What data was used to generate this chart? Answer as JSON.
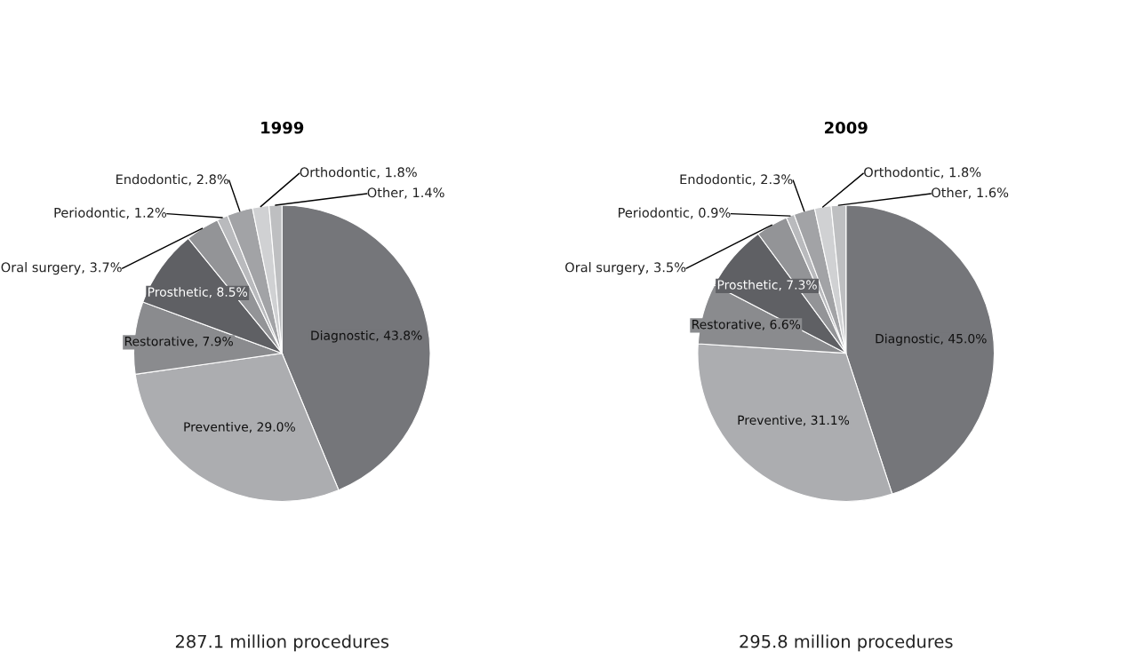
{
  "chart_data": [
    {
      "type": "pie",
      "title": "1999",
      "categories": [
        "Diagnostic",
        "Preventive",
        "Restorative",
        "Prosthetic",
        "Oral surgery",
        "Periodontic",
        "Endodontic",
        "Orthodontic",
        "Other"
      ],
      "values": [
        43.8,
        29.0,
        7.9,
        8.5,
        3.7,
        1.2,
        2.8,
        1.8,
        1.4
      ],
      "value_labels": [
        "43.8%",
        "29.0%",
        "7.9%",
        "8.5%",
        "3.7%",
        "1.2%",
        "2.8%",
        "1.8%",
        "1.4%"
      ],
      "colors": [
        "#75767a",
        "#acadb0",
        "#8a8b8e",
        "#5f6064",
        "#939497",
        "#b9babd",
        "#a2a3a6",
        "#d0d1d3",
        "#bebfc1"
      ],
      "annotations": [
        "287.1 million procedures"
      ]
    },
    {
      "type": "pie",
      "title": "2009",
      "categories": [
        "Diagnostic",
        "Preventive",
        "Restorative",
        "Prosthetic",
        "Oral surgery",
        "Periodontic",
        "Endodontic",
        "Orthodontic",
        "Other"
      ],
      "values": [
        45.0,
        31.1,
        6.6,
        7.3,
        3.5,
        0.9,
        2.3,
        1.8,
        1.6
      ],
      "value_labels": [
        "45.0%",
        "31.1%",
        "6.6%",
        "7.3%",
        "3.5%",
        "0.9%",
        "2.3%",
        "1.8%",
        "1.6%"
      ],
      "colors": [
        "#75767a",
        "#acadb0",
        "#8a8b8e",
        "#5f6064",
        "#939497",
        "#b9babd",
        "#a2a3a6",
        "#d0d1d3",
        "#bebfc1"
      ],
      "annotations": [
        "295.8 million procedures"
      ]
    }
  ]
}
